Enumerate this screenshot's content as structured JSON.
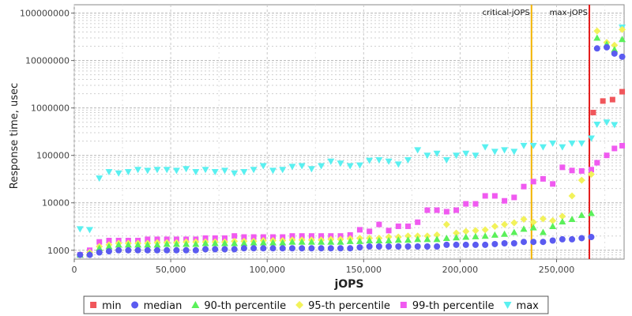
{
  "chart_data": {
    "type": "scatter",
    "xlabel": "jOPS",
    "ylabel": "Response time, usec",
    "x_scale": "linear",
    "y_scale": "log",
    "xlim": [
      0,
      285000
    ],
    "ylim": [
      650,
      150000000
    ],
    "grid": true,
    "legend_position": "bottom",
    "x_ticks": [
      0,
      50000,
      100000,
      150000,
      200000,
      250000
    ],
    "x_tick_labels": [
      "0",
      "50,000",
      "100,000",
      "150,000",
      "200,000",
      "250,000"
    ],
    "y_ticks": [
      1000,
      10000,
      100000,
      1000000,
      10000000,
      100000000
    ],
    "y_tick_labels": [
      "1000",
      "10000",
      "100000",
      "1000000",
      "10000000",
      "100000000"
    ],
    "markers": [
      {
        "label": "critical-jOPS",
        "x": 237000,
        "color": "#f2b400"
      },
      {
        "label": "max-jOPS",
        "x": 267000,
        "color": "#e41a1a"
      }
    ],
    "series": [
      {
        "name": "min",
        "shape": "square",
        "color": "#f0565b",
        "x": [
          269000,
          274000,
          279000,
          284000
        ],
        "y": [
          800000,
          1400000,
          1500000,
          2200000
        ]
      },
      {
        "name": "median",
        "shape": "circle",
        "color": "#5b5bf0",
        "x": [
          3000,
          8000,
          13000,
          18000,
          23000,
          28000,
          33000,
          38000,
          43000,
          48000,
          53000,
          58000,
          63000,
          68000,
          73000,
          78000,
          83000,
          88000,
          93000,
          98000,
          103000,
          108000,
          113000,
          118000,
          123000,
          128000,
          133000,
          138000,
          143000,
          148000,
          153000,
          158000,
          163000,
          168000,
          173000,
          178000,
          183000,
          188000,
          193000,
          198000,
          203000,
          208000,
          213000,
          218000,
          223000,
          228000,
          233000,
          238000,
          243000,
          248000,
          253000,
          258000,
          263000,
          268000,
          271000,
          276000,
          280000,
          284000
        ],
        "y": [
          800,
          800,
          900,
          950,
          1000,
          1000,
          1000,
          1000,
          1000,
          1000,
          1000,
          1000,
          1000,
          1050,
          1050,
          1050,
          1050,
          1100,
          1100,
          1100,
          1100,
          1100,
          1100,
          1100,
          1100,
          1100,
          1100,
          1100,
          1100,
          1150,
          1200,
          1200,
          1200,
          1200,
          1200,
          1200,
          1200,
          1200,
          1300,
          1300,
          1300,
          1300,
          1300,
          1350,
          1400,
          1400,
          1500,
          1500,
          1500,
          1600,
          1700,
          1700,
          1800,
          1900,
          18000000,
          19000000,
          14000000,
          12000000
        ]
      },
      {
        "name": "90-th percentile",
        "shape": "triangle-up",
        "color": "#5af05a",
        "x": [
          3000,
          8000,
          13000,
          18000,
          23000,
          28000,
          33000,
          38000,
          43000,
          48000,
          53000,
          58000,
          63000,
          68000,
          73000,
          78000,
          83000,
          88000,
          93000,
          98000,
          103000,
          108000,
          113000,
          118000,
          123000,
          128000,
          133000,
          138000,
          143000,
          148000,
          153000,
          158000,
          163000,
          168000,
          173000,
          178000,
          183000,
          188000,
          193000,
          198000,
          203000,
          208000,
          213000,
          218000,
          223000,
          228000,
          233000,
          238000,
          243000,
          248000,
          253000,
          258000,
          263000,
          268000,
          271000,
          276000,
          280000,
          284000
        ],
        "y": [
          800,
          850,
          1100,
          1200,
          1300,
          1300,
          1300,
          1300,
          1300,
          1350,
          1350,
          1350,
          1350,
          1400,
          1400,
          1400,
          1400,
          1400,
          1450,
          1450,
          1450,
          1450,
          1500,
          1500,
          1500,
          1500,
          1500,
          1500,
          1550,
          1550,
          1600,
          1600,
          1600,
          1650,
          1650,
          1700,
          1700,
          1700,
          1800,
          1850,
          1900,
          1950,
          2000,
          2100,
          2200,
          2400,
          2800,
          3000,
          2400,
          3200,
          4000,
          4500,
          5500,
          6000,
          30000000,
          22000000,
          17000000,
          28000000
        ]
      },
      {
        "name": "95-th percentile",
        "shape": "diamond",
        "color": "#f2f25a",
        "x": [
          3000,
          8000,
          13000,
          18000,
          23000,
          28000,
          33000,
          38000,
          43000,
          48000,
          53000,
          58000,
          63000,
          68000,
          73000,
          78000,
          83000,
          88000,
          93000,
          98000,
          103000,
          108000,
          113000,
          118000,
          123000,
          128000,
          133000,
          138000,
          143000,
          148000,
          153000,
          158000,
          163000,
          168000,
          173000,
          178000,
          183000,
          188000,
          193000,
          198000,
          203000,
          208000,
          213000,
          218000,
          223000,
          228000,
          233000,
          238000,
          243000,
          248000,
          253000,
          258000,
          263000,
          268000,
          271000,
          276000,
          280000,
          284000
        ],
        "y": [
          800,
          900,
          1200,
          1300,
          1400,
          1400,
          1400,
          1400,
          1450,
          1450,
          1450,
          1500,
          1500,
          1500,
          1500,
          1500,
          1550,
          1550,
          1550,
          1600,
          1600,
          1600,
          1650,
          1650,
          1650,
          1650,
          1700,
          1700,
          1750,
          1800,
          1800,
          1800,
          1900,
          1900,
          2000,
          2000,
          2000,
          2100,
          3500,
          2300,
          2500,
          2600,
          2700,
          3200,
          3500,
          3800,
          4500,
          3900,
          4600,
          4200,
          5200,
          14000,
          30000,
          40000,
          42000000,
          24000000,
          21000000,
          45000000
        ]
      },
      {
        "name": "99-th percentile",
        "shape": "square",
        "color": "#f05af0",
        "x": [
          3000,
          8000,
          13000,
          18000,
          23000,
          28000,
          33000,
          38000,
          43000,
          48000,
          53000,
          58000,
          63000,
          68000,
          73000,
          78000,
          83000,
          88000,
          93000,
          98000,
          103000,
          108000,
          113000,
          118000,
          123000,
          128000,
          133000,
          138000,
          143000,
          148000,
          153000,
          158000,
          163000,
          168000,
          173000,
          178000,
          183000,
          188000,
          193000,
          198000,
          203000,
          208000,
          213000,
          218000,
          223000,
          228000,
          233000,
          238000,
          243000,
          248000,
          253000,
          258000,
          263000,
          268000,
          271000,
          276000,
          280000,
          284000
        ],
        "y": [
          800,
          1000,
          1500,
          1600,
          1600,
          1600,
          1600,
          1700,
          1700,
          1700,
          1700,
          1700,
          1700,
          1800,
          1800,
          1800,
          2000,
          1900,
          1900,
          1900,
          1900,
          1900,
          2000,
          2000,
          2000,
          2000,
          2000,
          2000,
          2100,
          2700,
          2500,
          3500,
          2600,
          3200,
          3200,
          3900,
          7000,
          7000,
          6500,
          7000,
          9500,
          9500,
          14000,
          14000,
          11000,
          13000,
          22000,
          28000,
          32000,
          25000,
          56000,
          48000,
          47000,
          50000,
          70000,
          100000,
          140000,
          160000
        ]
      },
      {
        "name": "max",
        "shape": "triangle-down",
        "color": "#5af0f0",
        "x": [
          3000,
          8000,
          13000,
          18000,
          23000,
          28000,
          33000,
          38000,
          43000,
          48000,
          53000,
          58000,
          63000,
          68000,
          73000,
          78000,
          83000,
          88000,
          93000,
          98000,
          103000,
          108000,
          113000,
          118000,
          123000,
          128000,
          133000,
          138000,
          143000,
          148000,
          153000,
          158000,
          163000,
          168000,
          173000,
          178000,
          183000,
          188000,
          193000,
          198000,
          203000,
          208000,
          213000,
          218000,
          223000,
          228000,
          233000,
          238000,
          243000,
          248000,
          253000,
          258000,
          263000,
          268000,
          271000,
          276000,
          280000,
          284000
        ],
        "y": [
          2800,
          2700,
          33000,
          45000,
          42000,
          45000,
          50000,
          48000,
          50000,
          50000,
          48000,
          52000,
          45000,
          50000,
          45000,
          48000,
          42000,
          45000,
          50000,
          60000,
          48000,
          50000,
          58000,
          60000,
          52000,
          60000,
          75000,
          68000,
          60000,
          62000,
          78000,
          80000,
          75000,
          65000,
          80000,
          130000,
          100000,
          110000,
          80000,
          100000,
          110000,
          100000,
          150000,
          120000,
          130000,
          120000,
          160000,
          160000,
          150000,
          180000,
          150000,
          180000,
          180000,
          230000,
          450000,
          500000,
          440000,
          50000000
        ]
      }
    ]
  },
  "legend": {
    "items": [
      {
        "name": "min"
      },
      {
        "name": "median"
      },
      {
        "name": "90-th percentile"
      },
      {
        "name": "95-th percentile"
      },
      {
        "name": "99-th percentile"
      },
      {
        "name": "max"
      }
    ]
  }
}
